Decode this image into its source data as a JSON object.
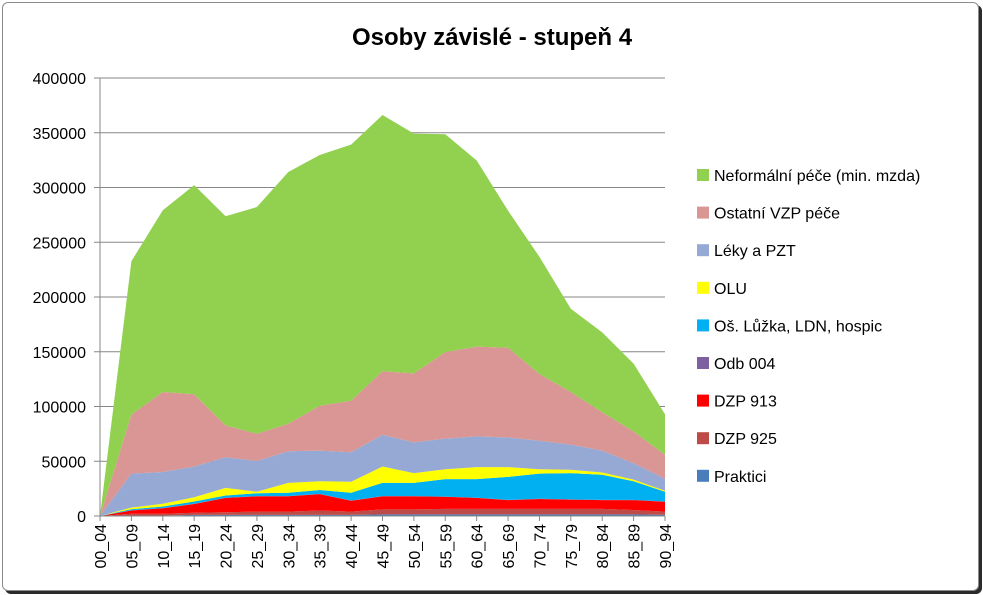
{
  "chart_data": {
    "type": "area",
    "stacked": true,
    "title": "Osoby závislé - stupeň 4",
    "xlabel": "",
    "ylabel": "",
    "ylim": [
      0,
      400000
    ],
    "y_ticks": [
      0,
      50000,
      100000,
      150000,
      200000,
      250000,
      300000,
      350000,
      400000
    ],
    "grid": true,
    "legend_position": "right",
    "categories": [
      "00_04",
      "05_09",
      "10_14",
      "15_19",
      "20_24",
      "25_29",
      "30_34",
      "35_39",
      "40_44",
      "45_49",
      "50_54",
      "55_59",
      "60_64",
      "65_69",
      "70_74",
      "75_79",
      "80_84",
      "85_89",
      "90_94"
    ],
    "series": [
      {
        "name": "Praktici",
        "color": "#4a7ebb",
        "values": [
          0,
          500,
          500,
          1000,
          1000,
          1000,
          1000,
          1000,
          1000,
          1500,
          1500,
          1500,
          1500,
          1500,
          1500,
          1500,
          1500,
          1500,
          1000
        ]
      },
      {
        "name": "DZP 925",
        "color": "#be4b48",
        "values": [
          0,
          1500,
          1500,
          2000,
          2500,
          3000,
          3000,
          4000,
          3000,
          4500,
          4500,
          5000,
          5000,
          5000,
          5000,
          5000,
          5000,
          4000,
          3000
        ]
      },
      {
        "name": "DZP 913",
        "color": "#ff0000",
        "values": [
          0,
          3000,
          5000,
          8000,
          13000,
          14000,
          14000,
          15000,
          10000,
          12000,
          12000,
          11000,
          10000,
          8000,
          9000,
          8500,
          8000,
          9000,
          9000
        ]
      },
      {
        "name": "Odb 004",
        "color": "#7d60a0",
        "values": [
          0,
          200,
          200,
          200,
          200,
          200,
          200,
          200,
          200,
          200,
          200,
          200,
          200,
          200,
          200,
          200,
          200,
          200,
          200
        ]
      },
      {
        "name": "Oš. Lůžka, LDN, hospic",
        "color": "#00b0f0",
        "values": [
          0,
          1000,
          1500,
          2000,
          2000,
          2500,
          3000,
          3500,
          7000,
          12000,
          12000,
          16000,
          17000,
          21000,
          23000,
          24000,
          23000,
          17000,
          9000
        ]
      },
      {
        "name": "OLU",
        "color": "#ffff00",
        "values": [
          0,
          1500,
          2500,
          4000,
          7000,
          1500,
          9000,
          8000,
          10000,
          15000,
          9000,
          9000,
          11000,
          9000,
          4000,
          3000,
          2000,
          1500,
          800
        ]
      },
      {
        "name": "Léky a PZT",
        "color": "#95a9d4",
        "values": [
          0,
          31000,
          29000,
          28000,
          28000,
          28000,
          29000,
          28000,
          27000,
          29000,
          28000,
          28000,
          28000,
          27000,
          26000,
          23000,
          20000,
          15000,
          11000
        ]
      },
      {
        "name": "Ostatní VZP péče",
        "color": "#d99694",
        "values": [
          0,
          54000,
          73000,
          66000,
          29000,
          25000,
          25000,
          41000,
          47000,
          58000,
          63000,
          79000,
          82000,
          82000,
          61000,
          48000,
          35000,
          29000,
          22000
        ]
      },
      {
        "name": "Neformální péče (min. mzda)",
        "color": "#92d050",
        "values": [
          0,
          140000,
          166000,
          191000,
          191000,
          207000,
          230000,
          229000,
          234000,
          234000,
          219000,
          199000,
          170000,
          125000,
          107000,
          76000,
          73000,
          62000,
          37000
        ]
      }
    ]
  }
}
